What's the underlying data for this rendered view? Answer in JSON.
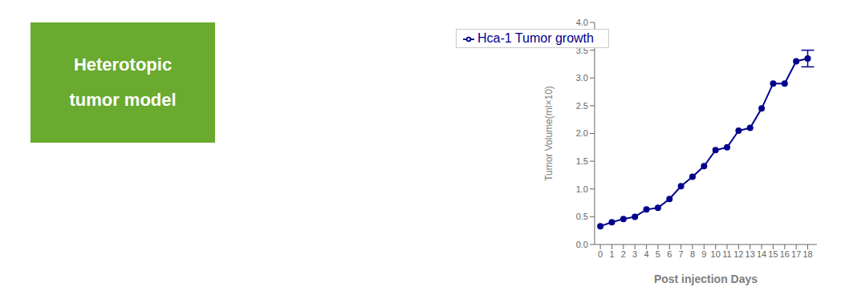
{
  "chart_data": {
    "type": "line",
    "x": [
      0,
      1,
      2,
      3,
      4,
      5,
      6,
      7,
      8,
      9,
      10,
      11,
      12,
      13,
      14,
      15,
      16,
      17,
      18
    ],
    "series": [
      {
        "name": "Hca-1 Tumor growth",
        "color": "#00008B",
        "marker": "circle",
        "line_style": "solid",
        "values": [
          0.33,
          0.4,
          0.46,
          0.5,
          0.63,
          0.66,
          0.82,
          1.05,
          1.22,
          1.41,
          1.7,
          1.75,
          2.05,
          2.1,
          2.45,
          2.9,
          2.9,
          3.3,
          3.35
        ],
        "errors": [
          0,
          0,
          0,
          0,
          0,
          0,
          0,
          0,
          0,
          0,
          0,
          0,
          0,
          0,
          0,
          0,
          0,
          0,
          0.15
        ]
      }
    ],
    "xlabel": "Post injection Days",
    "ylabel": "Tumor Volume(ml×10)",
    "xlim": [
      -0.5,
      18.8
    ],
    "ylim": [
      0.0,
      4.0
    ],
    "xticks": [
      0,
      1,
      2,
      3,
      4,
      5,
      6,
      7,
      8,
      9,
      10,
      11,
      12,
      13,
      14,
      15,
      16,
      17,
      18
    ],
    "yticks": [
      {
        "value": 0.0,
        "label": "0.0"
      },
      0.5,
      {
        "value": 1.0,
        "label": "1.0"
      },
      1.5,
      {
        "value": 2.0,
        "label": "2.0"
      },
      2.5,
      {
        "value": 3.0,
        "label": "3.0"
      },
      3.5,
      {
        "value": 4.0,
        "label": "4.0"
      }
    ],
    "legend": "upper left",
    "grid": false,
    "annotations": [
      "Heterotopic",
      "tumor model"
    ]
  }
}
